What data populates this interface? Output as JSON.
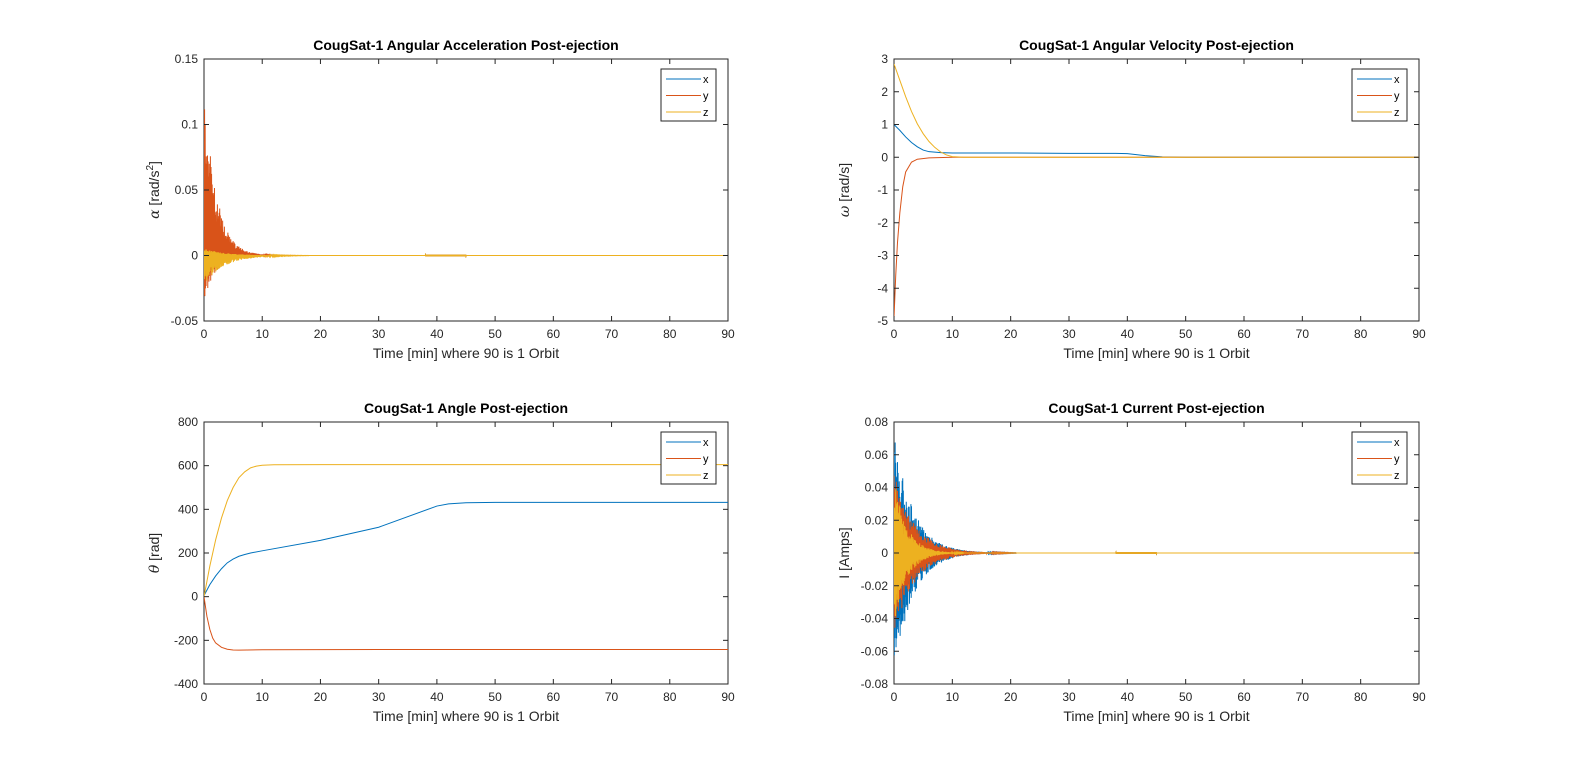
{
  "colors": {
    "x": "#0072BD",
    "y": "#D95319",
    "z": "#EDB120",
    "axis": "#262626"
  },
  "chart_data": [
    {
      "type": "line",
      "title": "CougSat-1 Angular Acceleration Post-ejection",
      "xlabel": "Time [min] where 90 is 1 Orbit",
      "ylabel_symbol": "α",
      "ylabel_text": " [rad/s",
      "ylabel_sup": "2",
      "ylabel_close": "]",
      "xlim": [
        0,
        90
      ],
      "ylim": [
        -0.05,
        0.15
      ],
      "xticks": [
        0,
        10,
        20,
        30,
        40,
        50,
        60,
        70,
        80,
        90
      ],
      "yticks": [
        -0.05,
        0,
        0.05,
        0.1,
        0.15
      ],
      "ytick_labels": [
        "-0.05",
        "0",
        "0.05",
        "0.1",
        "0.15"
      ],
      "legend": [
        "x",
        "y",
        "z"
      ],
      "legend_position": "top-right",
      "grid": false,
      "series": [
        {
          "name": "x",
          "kind": "damped",
          "center": 0,
          "amp": 0.012,
          "amp_end": 0,
          "decay": 2.5,
          "until": 12
        },
        {
          "name": "y",
          "kind": "damped",
          "center": 0,
          "amp": 0.14,
          "amp_end": 0,
          "decay": 2.0,
          "until": 14,
          "asym": 0.85
        },
        {
          "name": "z",
          "kind": "damped",
          "center": 0,
          "amp": 0.022,
          "amp_end": 0,
          "decay": 3.5,
          "until": 12,
          "asym": -0.9
        }
      ]
    },
    {
      "type": "line",
      "title": "CougSat-1 Angular Velocity Post-ejection",
      "xlabel": "Time [min] where 90 is 1 Orbit",
      "ylabel_symbol": "ω",
      "ylabel_text": " [rad/s]",
      "ylabel_sup": "",
      "ylabel_close": "",
      "xlim": [
        0,
        90
      ],
      "ylim": [
        -5,
        3
      ],
      "xticks": [
        0,
        10,
        20,
        30,
        40,
        50,
        60,
        70,
        80,
        90
      ],
      "yticks": [
        -5,
        -4,
        -3,
        -2,
        -1,
        0,
        1,
        2,
        3
      ],
      "ytick_labels": [
        "-5",
        "-4",
        "-3",
        "-2",
        "-1",
        "0",
        "1",
        "2",
        "3"
      ],
      "legend": [
        "x",
        "y",
        "z"
      ],
      "legend_position": "top-right",
      "grid": false,
      "series": [
        {
          "name": "x",
          "points": [
            [
              0,
              1.0
            ],
            [
              1,
              0.82
            ],
            [
              2,
              0.62
            ],
            [
              3,
              0.45
            ],
            [
              4,
              0.32
            ],
            [
              5,
              0.22
            ],
            [
              6,
              0.17
            ],
            [
              8,
              0.14
            ],
            [
              10,
              0.13
            ],
            [
              20,
              0.13
            ],
            [
              30,
              0.12
            ],
            [
              38,
              0.12
            ],
            [
              40,
              0.11
            ],
            [
              43,
              0.05
            ],
            [
              46,
              0.01
            ],
            [
              50,
              0.0
            ],
            [
              90,
              0.0
            ]
          ]
        },
        {
          "name": "y",
          "points": [
            [
              0,
              -4.9
            ],
            [
              0.3,
              -3.6
            ],
            [
              0.6,
              -2.6
            ],
            [
              1,
              -1.7
            ],
            [
              1.5,
              -0.9
            ],
            [
              2,
              -0.45
            ],
            [
              3,
              -0.15
            ],
            [
              4,
              -0.06
            ],
            [
              6,
              -0.02
            ],
            [
              10,
              0.0
            ],
            [
              90,
              0.0
            ]
          ]
        },
        {
          "name": "z",
          "points": [
            [
              0,
              2.85
            ],
            [
              1,
              2.35
            ],
            [
              2,
              1.85
            ],
            [
              3,
              1.4
            ],
            [
              4,
              1.02
            ],
            [
              5,
              0.72
            ],
            [
              6,
              0.48
            ],
            [
              7,
              0.3
            ],
            [
              8,
              0.16
            ],
            [
              9,
              0.07
            ],
            [
              10,
              0.02
            ],
            [
              12,
              0.0
            ],
            [
              90,
              0.0
            ]
          ]
        }
      ]
    },
    {
      "type": "line",
      "title": "CougSat-1 Angle Post-ejection",
      "xlabel": "Time [min] where 90 is 1 Orbit",
      "ylabel_symbol": "θ",
      "ylabel_text": " [rad]",
      "ylabel_sup": "",
      "ylabel_close": "",
      "xlim": [
        0,
        90
      ],
      "ylim": [
        -400,
        800
      ],
      "xticks": [
        0,
        10,
        20,
        30,
        40,
        50,
        60,
        70,
        80,
        90
      ],
      "yticks": [
        -400,
        -200,
        0,
        200,
        400,
        600,
        800
      ],
      "ytick_labels": [
        "-400",
        "-200",
        "0",
        "200",
        "400",
        "600",
        "800"
      ],
      "legend": [
        "x",
        "y",
        "z"
      ],
      "legend_position": "top-right",
      "grid": false,
      "series": [
        {
          "name": "x",
          "points": [
            [
              0,
              5
            ],
            [
              1,
              55
            ],
            [
              2,
              95
            ],
            [
              3,
              128
            ],
            [
              4,
              155
            ],
            [
              5,
              172
            ],
            [
              6,
              185
            ],
            [
              7,
              193
            ],
            [
              8,
              200
            ],
            [
              10,
              210
            ],
            [
              20,
              258
            ],
            [
              30,
              318
            ],
            [
              40,
              415
            ],
            [
              42,
              425
            ],
            [
              45,
              430
            ],
            [
              50,
              432
            ],
            [
              60,
              432
            ],
            [
              90,
              432
            ]
          ]
        },
        {
          "name": "y",
          "points": [
            [
              0,
              0
            ],
            [
              0.5,
              -90
            ],
            [
              1,
              -150
            ],
            [
              1.5,
              -190
            ],
            [
              2,
              -212
            ],
            [
              3,
              -232
            ],
            [
              4,
              -241
            ],
            [
              5,
              -244
            ],
            [
              6,
              -245
            ],
            [
              10,
              -243
            ],
            [
              30,
              -242
            ],
            [
              50,
              -242
            ],
            [
              90,
              -242
            ]
          ]
        },
        {
          "name": "z",
          "points": [
            [
              0,
              0
            ],
            [
              1,
              140
            ],
            [
              2,
              260
            ],
            [
              3,
              360
            ],
            [
              4,
              440
            ],
            [
              5,
              500
            ],
            [
              6,
              545
            ],
            [
              7,
              572
            ],
            [
              8,
              590
            ],
            [
              9,
              598
            ],
            [
              10,
              602
            ],
            [
              12,
              604
            ],
            [
              20,
              605
            ],
            [
              90,
              605
            ]
          ]
        }
      ]
    },
    {
      "type": "line",
      "title": "CougSat-1 Current Post-ejection",
      "xlabel": "Time [min] where 90 is 1 Orbit",
      "ylabel_symbol": "",
      "ylabel_text": "I [Amps]",
      "ylabel_sup": "",
      "ylabel_close": "",
      "xlim": [
        0,
        90
      ],
      "ylim": [
        -0.08,
        0.08
      ],
      "xticks": [
        0,
        10,
        20,
        30,
        40,
        50,
        60,
        70,
        80,
        90
      ],
      "yticks": [
        -0.08,
        -0.06,
        -0.04,
        -0.02,
        0,
        0.02,
        0.04,
        0.06,
        0.08
      ],
      "ytick_labels": [
        "-0.08",
        "-0.06",
        "-0.04",
        "-0.02",
        "0",
        "0.02",
        "0.04",
        "0.06",
        "0.08"
      ],
      "legend": [
        "x",
        "y",
        "z"
      ],
      "legend_position": "top-right",
      "grid": false,
      "series": [
        {
          "name": "x",
          "kind": "damped",
          "center": 0,
          "amp": 0.075,
          "amp_end": 0,
          "decay": 3.2,
          "until": 14
        },
        {
          "name": "y",
          "kind": "damped",
          "center": 0,
          "amp": 0.05,
          "amp_end": 0,
          "decay": 3.5,
          "until": 14
        },
        {
          "name": "z",
          "kind": "damped",
          "center": 0,
          "amp": 0.045,
          "amp_end": 0,
          "decay": 2.2,
          "until": 8
        }
      ]
    }
  ]
}
